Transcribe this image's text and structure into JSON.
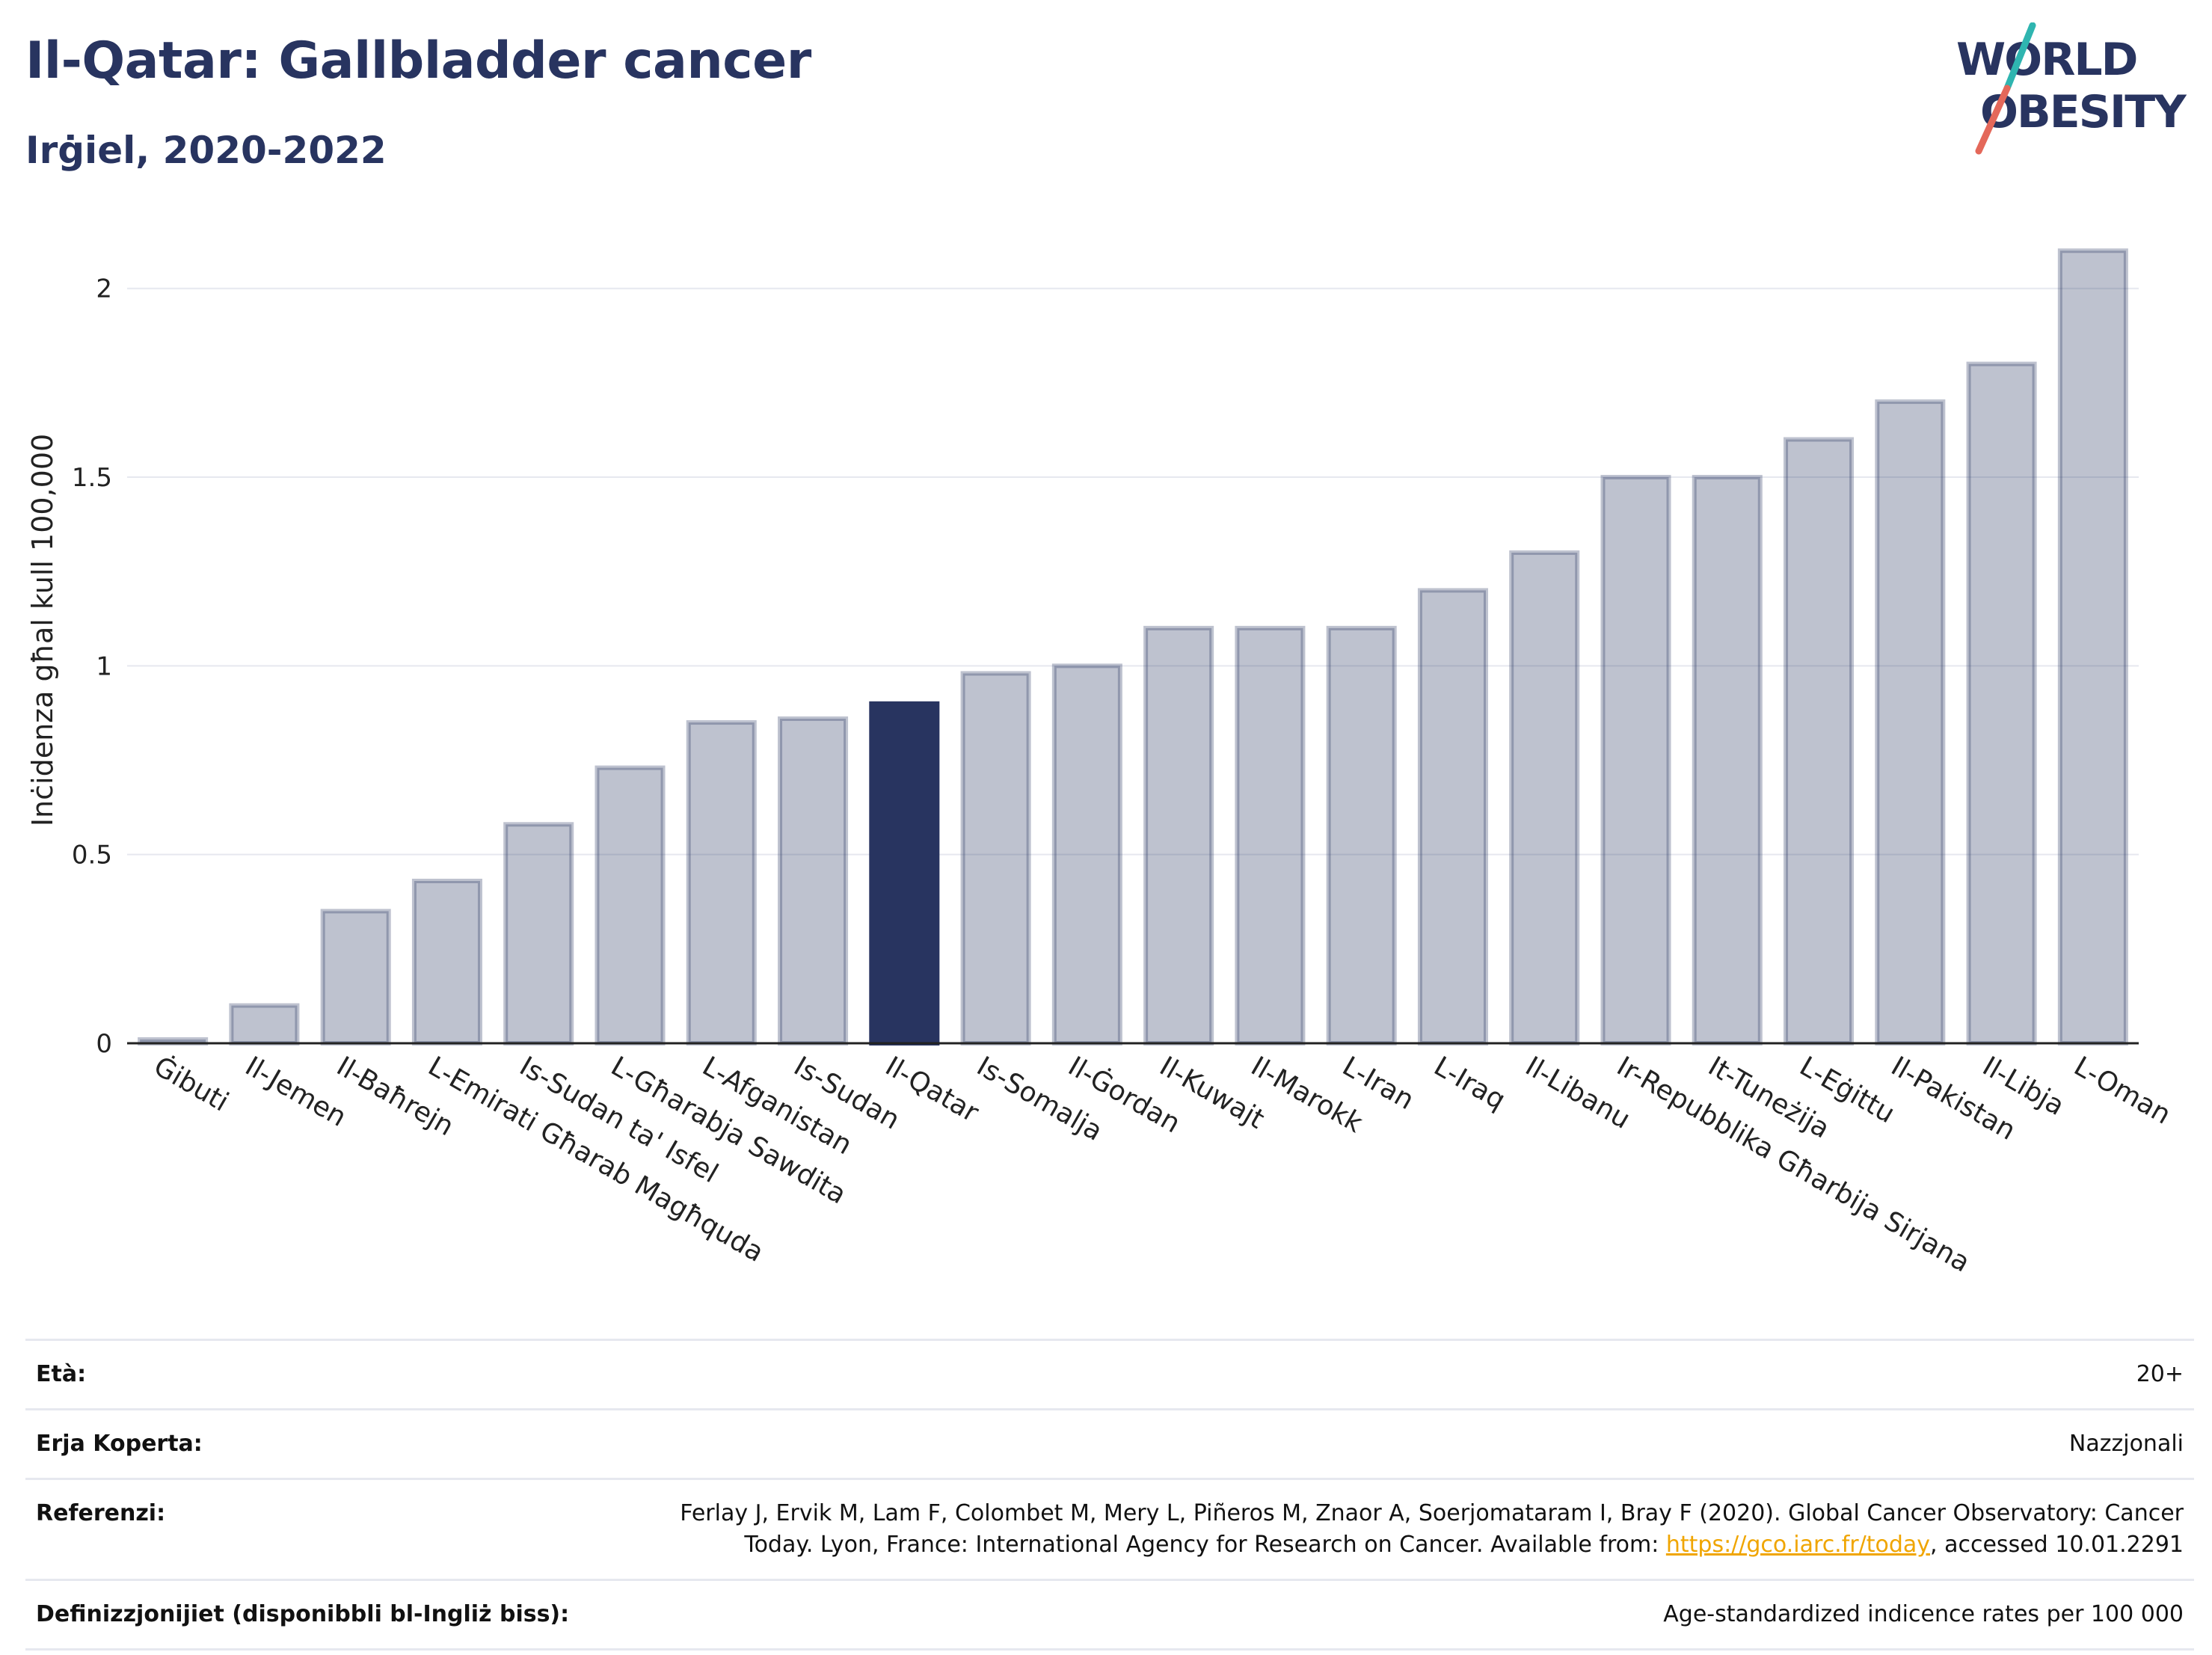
{
  "header": {
    "title": "Il-Qatar: Gallbladder cancer",
    "subtitle": "Irġiel, 2020-2022"
  },
  "logo": {
    "line1": "WORLD",
    "line2": "OBESITY",
    "colors": {
      "text": "#283460",
      "teal": "#2fb5b0",
      "coral": "#e4685a"
    }
  },
  "colors": {
    "bar_default": "#283460",
    "bar_highlight": "#283460",
    "grid": "#e6e8ef",
    "axis": "#222222"
  },
  "chart_data": {
    "type": "bar",
    "title": "Il-Qatar: Gallbladder cancer",
    "subtitle": "Irġiel, 2020-2022",
    "xlabel": "",
    "ylabel": "Inċidenza għal kull 100,000",
    "ylim": [
      0,
      2.15
    ],
    "yticks": [
      0,
      0.5,
      1,
      1.5,
      2
    ],
    "ytick_labels": [
      "0",
      "0.5",
      "1",
      "1.5",
      "2"
    ],
    "grid": true,
    "highlight": "Il-Qatar",
    "categories": [
      "Ġibuti",
      "Il-Jemen",
      "Il-Baħrejn",
      "L-Emirati Għarab Magħquda",
      "Is-Sudan ta' Isfel",
      "L-Għarabja Sawdita",
      "L-Afganistan",
      "Is-Sudan",
      "Il-Qatar",
      "Is-Somalja",
      "Il-Ġordan",
      "Il-Kuwajt",
      "Il-Marokk",
      "L-Iran",
      "L-Iraq",
      "Il-Libanu",
      "Ir-Repubblika Għarbija Sirjana",
      "It-Tuneżija",
      "L-Eġittu",
      "Il-Pakistan",
      "Il-Libja",
      "L-Oman"
    ],
    "values": [
      0.01,
      0.1,
      0.35,
      0.43,
      0.58,
      0.73,
      0.85,
      0.86,
      0.9,
      0.98,
      1.0,
      1.1,
      1.1,
      1.1,
      1.2,
      1.3,
      1.5,
      1.5,
      1.6,
      1.7,
      1.8,
      2.1
    ]
  },
  "info": {
    "rows": [
      {
        "label": "Età:",
        "value": "20+"
      },
      {
        "label": "Erja Koperta:",
        "value": "Nazzjonali"
      },
      {
        "label": "Referenzi:",
        "value_before": "Ferlay J, Ervik M, Lam F, Colombet M, Mery L, Piñeros M, Znaor A, Soerjomataram I, Bray F (2020). Global Cancer Observatory: Cancer Today. Lyon, France: International Agency for Research on Cancer. Available from: ",
        "link": "https://gco.iarc.fr/today",
        "value_after": ", accessed 10.01.2291"
      },
      {
        "label": "Definizzjonijiet (disponibbli bl-Ingliż biss):",
        "value": "Age-standardized indicence rates per 100 000"
      }
    ]
  }
}
